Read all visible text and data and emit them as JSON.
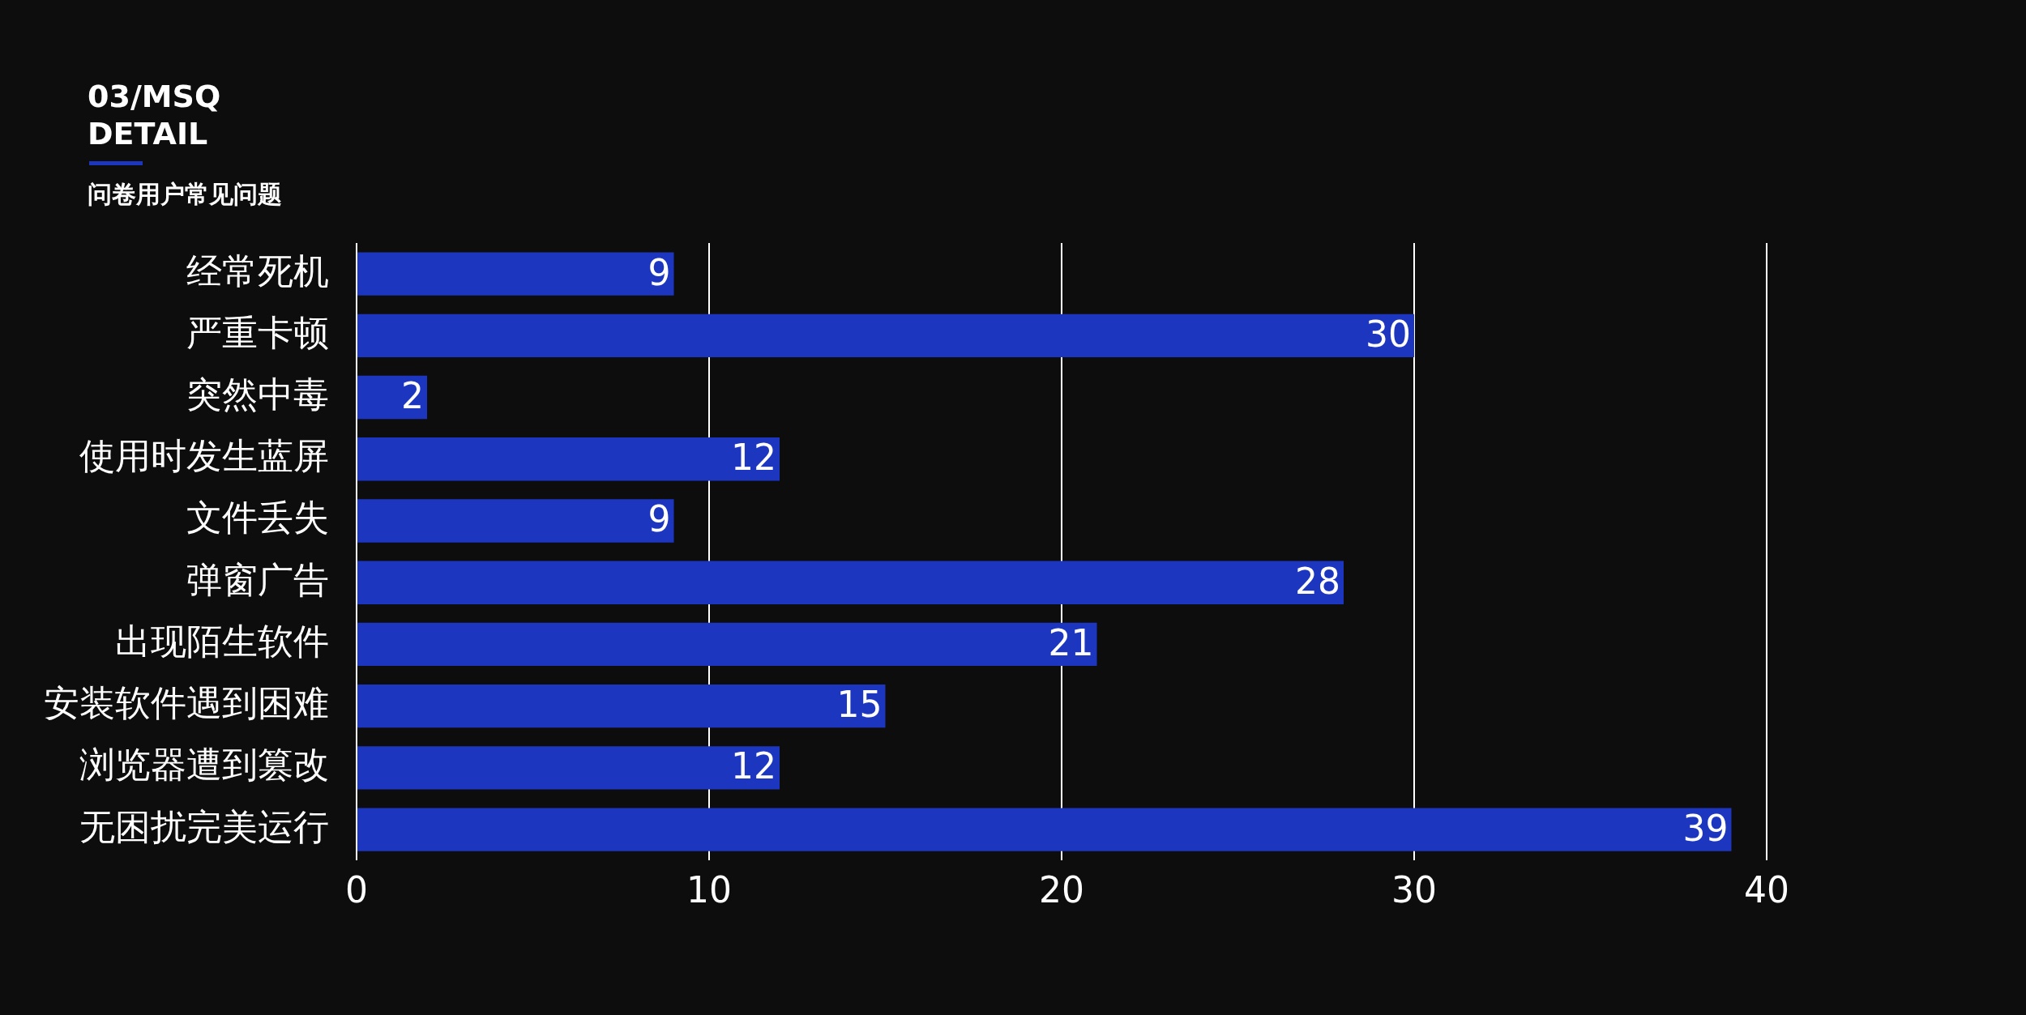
{
  "chart_data": {
    "type": "bar",
    "orientation": "horizontal",
    "title": "03/MSQ\nDETAIL",
    "subtitle": "问卷用户常见问题",
    "categories": [
      "经常死机",
      "严重卡顿",
      "突然中毒",
      "使用时发生蓝屏",
      "文件丢失",
      "弹窗广告",
      "出现陌生软件",
      "安装软件遇到困难",
      "浏览器遭到篡改",
      "无困扰完美运行"
    ],
    "values": [
      9,
      30,
      2,
      12,
      9,
      28,
      21,
      15,
      12,
      39
    ],
    "color": "#1c36c0",
    "xlim": [
      0,
      40
    ],
    "xticks": [
      0,
      10,
      20,
      30,
      40
    ],
    "grid": "x",
    "data_labels": true,
    "legend": false
  }
}
